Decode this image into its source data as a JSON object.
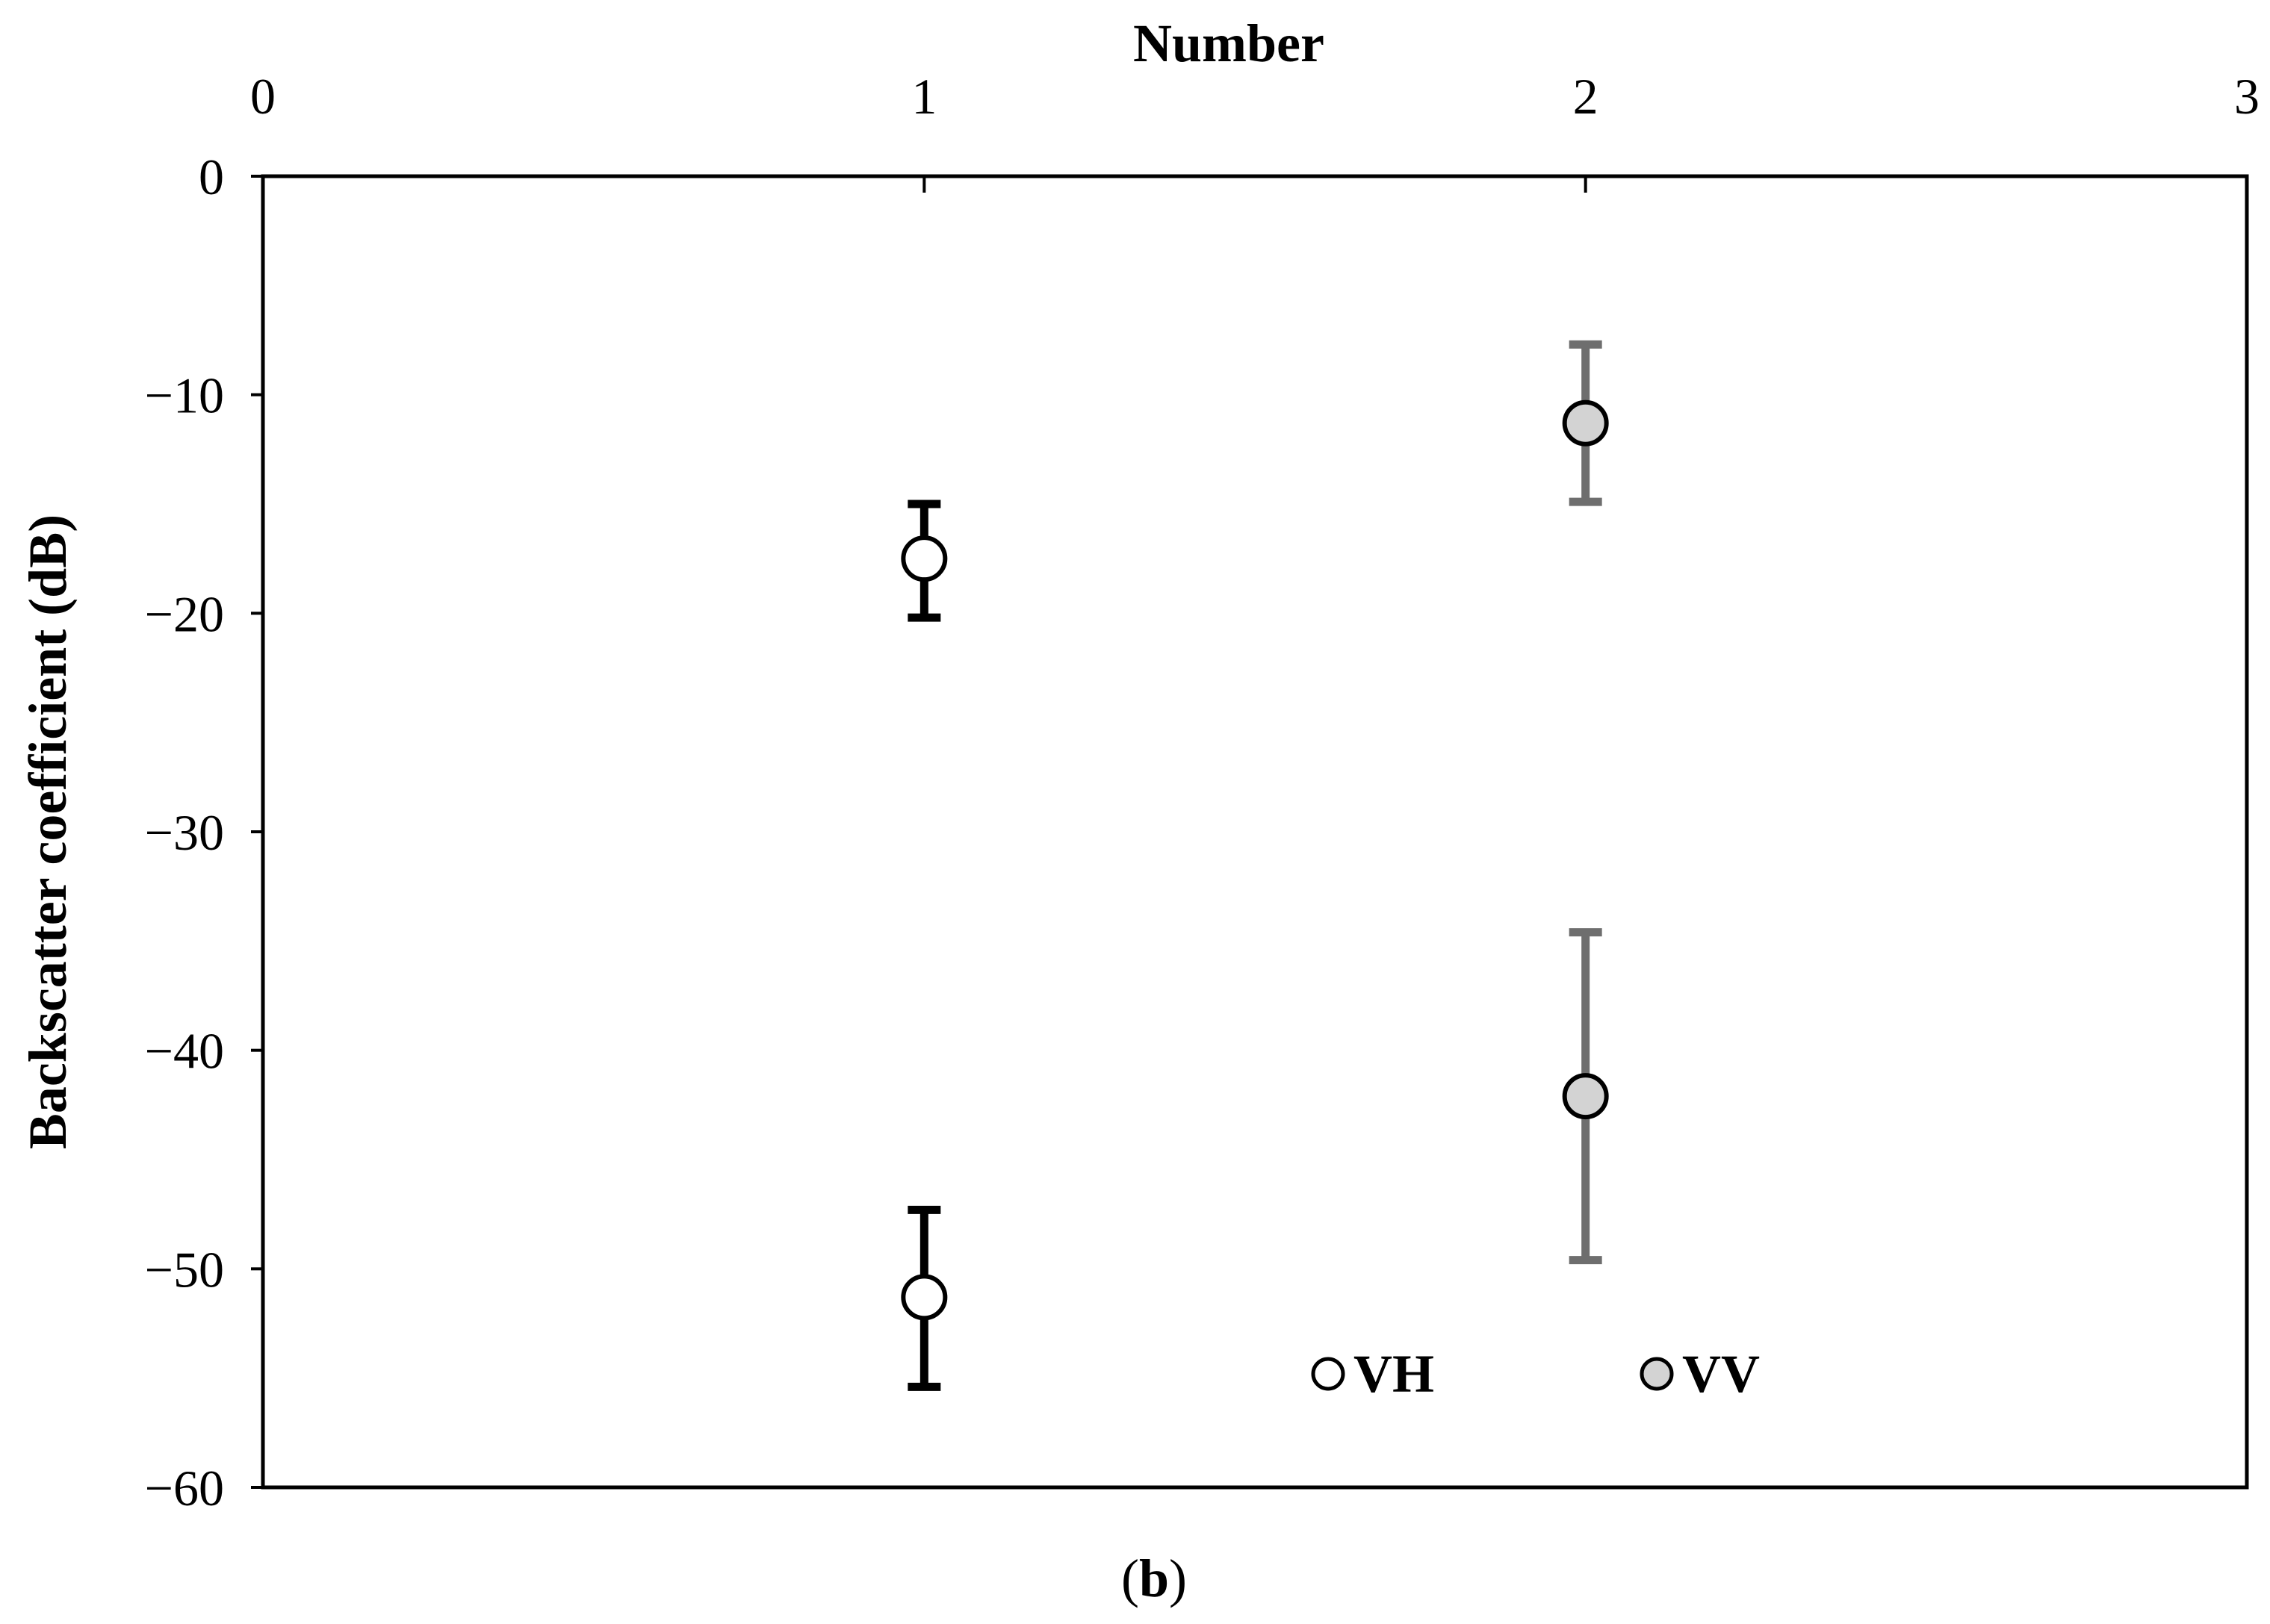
{
  "chart_data": {
    "type": "scatter",
    "title": "",
    "xlabel": "Number",
    "ylabel": "Backscatter coefficient (dB)",
    "xlim": [
      0,
      3
    ],
    "ylim": [
      -60,
      0
    ],
    "x_ticks": [
      "0",
      "1",
      "2",
      "3"
    ],
    "y_ticks": [
      "0",
      "−10",
      "−20",
      "−30",
      "−40",
      "−50",
      "−60"
    ],
    "x_axis_position": "top",
    "grid": false,
    "legend_position": "bottom-center",
    "panel_label": "b",
    "series": [
      {
        "name": "VH",
        "marker_fill": "#ffffff",
        "error_color": "#000000",
        "points": [
          {
            "x": 1,
            "y": -17.5,
            "err_low": -20.2,
            "err_high": -15.0
          },
          {
            "x": 1,
            "y": -51.3,
            "err_low": -55.4,
            "err_high": -47.3
          }
        ]
      },
      {
        "name": "VV",
        "marker_fill": "#d3d3d3",
        "error_color": "#6e6e6e",
        "points": [
          {
            "x": 2,
            "y": -11.3,
            "err_low": -14.9,
            "err_high": -7.7
          },
          {
            "x": 2,
            "y": -42.1,
            "err_low": -49.6,
            "err_high": -34.6
          }
        ]
      }
    ]
  }
}
